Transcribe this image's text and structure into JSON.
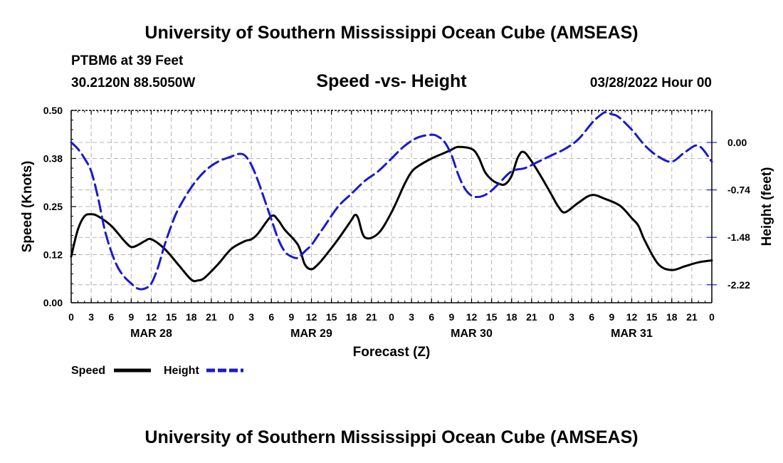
{
  "header": {
    "title": "University of Southern Mississippi Ocean Cube (AMSEAS)",
    "station": "PTBM6 at 39 Feet",
    "coordinates": "30.2120N  88.5050W",
    "subtitle": "Speed -vs- Height",
    "date": "03/28/2022 Hour 00"
  },
  "footer": {
    "title": "University of Southern Mississippi Ocean Cube (AMSEAS)"
  },
  "legend": {
    "speed_label": "Speed",
    "height_label": "Height"
  },
  "colors": {
    "speed": "#000000",
    "height": "#1a1acc",
    "grid": "#b4b4b4"
  },
  "chart_data": {
    "type": "line",
    "title": "Speed -vs- Height",
    "xlabel": "Forecast (Z)",
    "ylabel": "Speed (Knots)",
    "y2label": "Height (feet)",
    "xlim": [
      0,
      96
    ],
    "ylim": [
      0,
      0.5
    ],
    "y2lim": [
      -2.5,
      0.5
    ],
    "yticks": [
      0,
      0.125,
      0.25,
      0.375,
      0.5
    ],
    "yticklabels": [
      "0.00",
      "0.12",
      "0.25",
      "0.38",
      "0.50"
    ],
    "y2ticks": [
      -2.22,
      -1.48,
      -0.74,
      0.0
    ],
    "y2ticklabels": [
      "-2.22",
      "-1.48",
      "-0.74",
      "0.00"
    ],
    "xticks": [
      0,
      3,
      6,
      9,
      12,
      15,
      18,
      21,
      24,
      27,
      30,
      33,
      36,
      39,
      42,
      45,
      48,
      51,
      54,
      57,
      60,
      63,
      66,
      69,
      72,
      75,
      78,
      81,
      84,
      87,
      90,
      93,
      96
    ],
    "xticklabels": [
      "0",
      "3",
      "6",
      "9",
      "12",
      "15",
      "18",
      "21",
      "0",
      "3",
      "6",
      "9",
      "12",
      "15",
      "18",
      "21",
      "0",
      "3",
      "6",
      "9",
      "12",
      "15",
      "18",
      "21",
      "0",
      "3",
      "6",
      "9",
      "12",
      "15",
      "18",
      "21",
      "0"
    ],
    "day_labels": [
      {
        "x": 12,
        "label": "MAR 28"
      },
      {
        "x": 36,
        "label": "MAR 29"
      },
      {
        "x": 60,
        "label": "MAR 30"
      },
      {
        "x": 84,
        "label": "MAR 31"
      }
    ],
    "grid": true,
    "series": [
      {
        "name": "Speed",
        "axis": "left",
        "x": [
          0,
          1,
          2,
          3,
          4,
          6,
          8,
          9,
          10,
          11,
          12,
          14,
          16,
          18,
          19,
          20,
          22,
          24,
          26,
          27,
          28,
          30,
          31,
          32,
          34,
          35,
          36,
          37,
          38,
          40,
          42,
          42.5,
          43,
          44,
          46,
          48,
          50,
          51,
          52,
          54,
          56,
          57,
          58,
          60,
          61,
          62,
          63,
          64,
          65,
          66,
          67,
          68,
          70,
          72,
          73,
          74,
          76,
          78,
          80,
          82,
          83,
          84,
          85,
          86,
          88,
          90,
          92,
          94,
          96
        ],
        "values": [
          0.12,
          0.19,
          0.225,
          0.23,
          0.225,
          0.2,
          0.16,
          0.145,
          0.15,
          0.16,
          0.165,
          0.14,
          0.1,
          0.06,
          0.058,
          0.065,
          0.1,
          0.14,
          0.16,
          0.165,
          0.18,
          0.225,
          0.215,
          0.19,
          0.15,
          0.1,
          0.087,
          0.1,
          0.12,
          0.165,
          0.215,
          0.228,
          0.22,
          0.17,
          0.18,
          0.235,
          0.31,
          0.34,
          0.355,
          0.375,
          0.39,
          0.398,
          0.405,
          0.4,
          0.38,
          0.34,
          0.32,
          0.31,
          0.308,
          0.33,
          0.38,
          0.39,
          0.34,
          0.28,
          0.25,
          0.235,
          0.26,
          0.28,
          0.27,
          0.255,
          0.24,
          0.22,
          0.2,
          0.16,
          0.1,
          0.085,
          0.095,
          0.105,
          0.11
        ]
      },
      {
        "name": "Height",
        "axis": "right",
        "x": [
          0,
          1,
          2,
          3,
          4,
          5,
          6,
          7,
          8,
          9,
          10,
          11,
          12,
          13,
          14,
          15,
          16,
          18,
          20,
          22,
          24,
          25,
          26,
          27,
          28,
          29,
          30,
          31,
          32,
          33,
          34,
          35,
          36,
          37,
          38,
          40,
          42,
          44,
          46,
          48,
          50,
          52,
          54,
          55,
          56,
          57,
          58,
          59,
          60,
          61,
          62,
          63,
          64,
          66,
          68,
          70,
          72,
          74,
          76,
          78,
          79,
          80,
          81,
          82,
          84,
          86,
          88,
          90,
          92,
          94,
          96
        ],
        "values": [
          0.0,
          -0.1,
          -0.25,
          -0.45,
          -0.85,
          -1.35,
          -1.7,
          -1.95,
          -2.1,
          -2.2,
          -2.28,
          -2.28,
          -2.2,
          -1.95,
          -1.6,
          -1.3,
          -1.05,
          -0.7,
          -0.45,
          -0.3,
          -0.22,
          -0.18,
          -0.2,
          -0.35,
          -0.6,
          -0.9,
          -1.2,
          -1.5,
          -1.7,
          -1.78,
          -1.8,
          -1.7,
          -1.6,
          -1.45,
          -1.3,
          -1.0,
          -0.8,
          -0.6,
          -0.45,
          -0.25,
          -0.05,
          0.08,
          0.12,
          0.09,
          0.0,
          -0.2,
          -0.5,
          -0.72,
          -0.83,
          -0.85,
          -0.82,
          -0.75,
          -0.65,
          -0.45,
          -0.4,
          -0.3,
          -0.2,
          -0.1,
          0.05,
          0.3,
          0.4,
          0.47,
          0.44,
          0.4,
          0.2,
          -0.05,
          -0.22,
          -0.3,
          -0.15,
          -0.05,
          -0.3
        ]
      }
    ]
  }
}
